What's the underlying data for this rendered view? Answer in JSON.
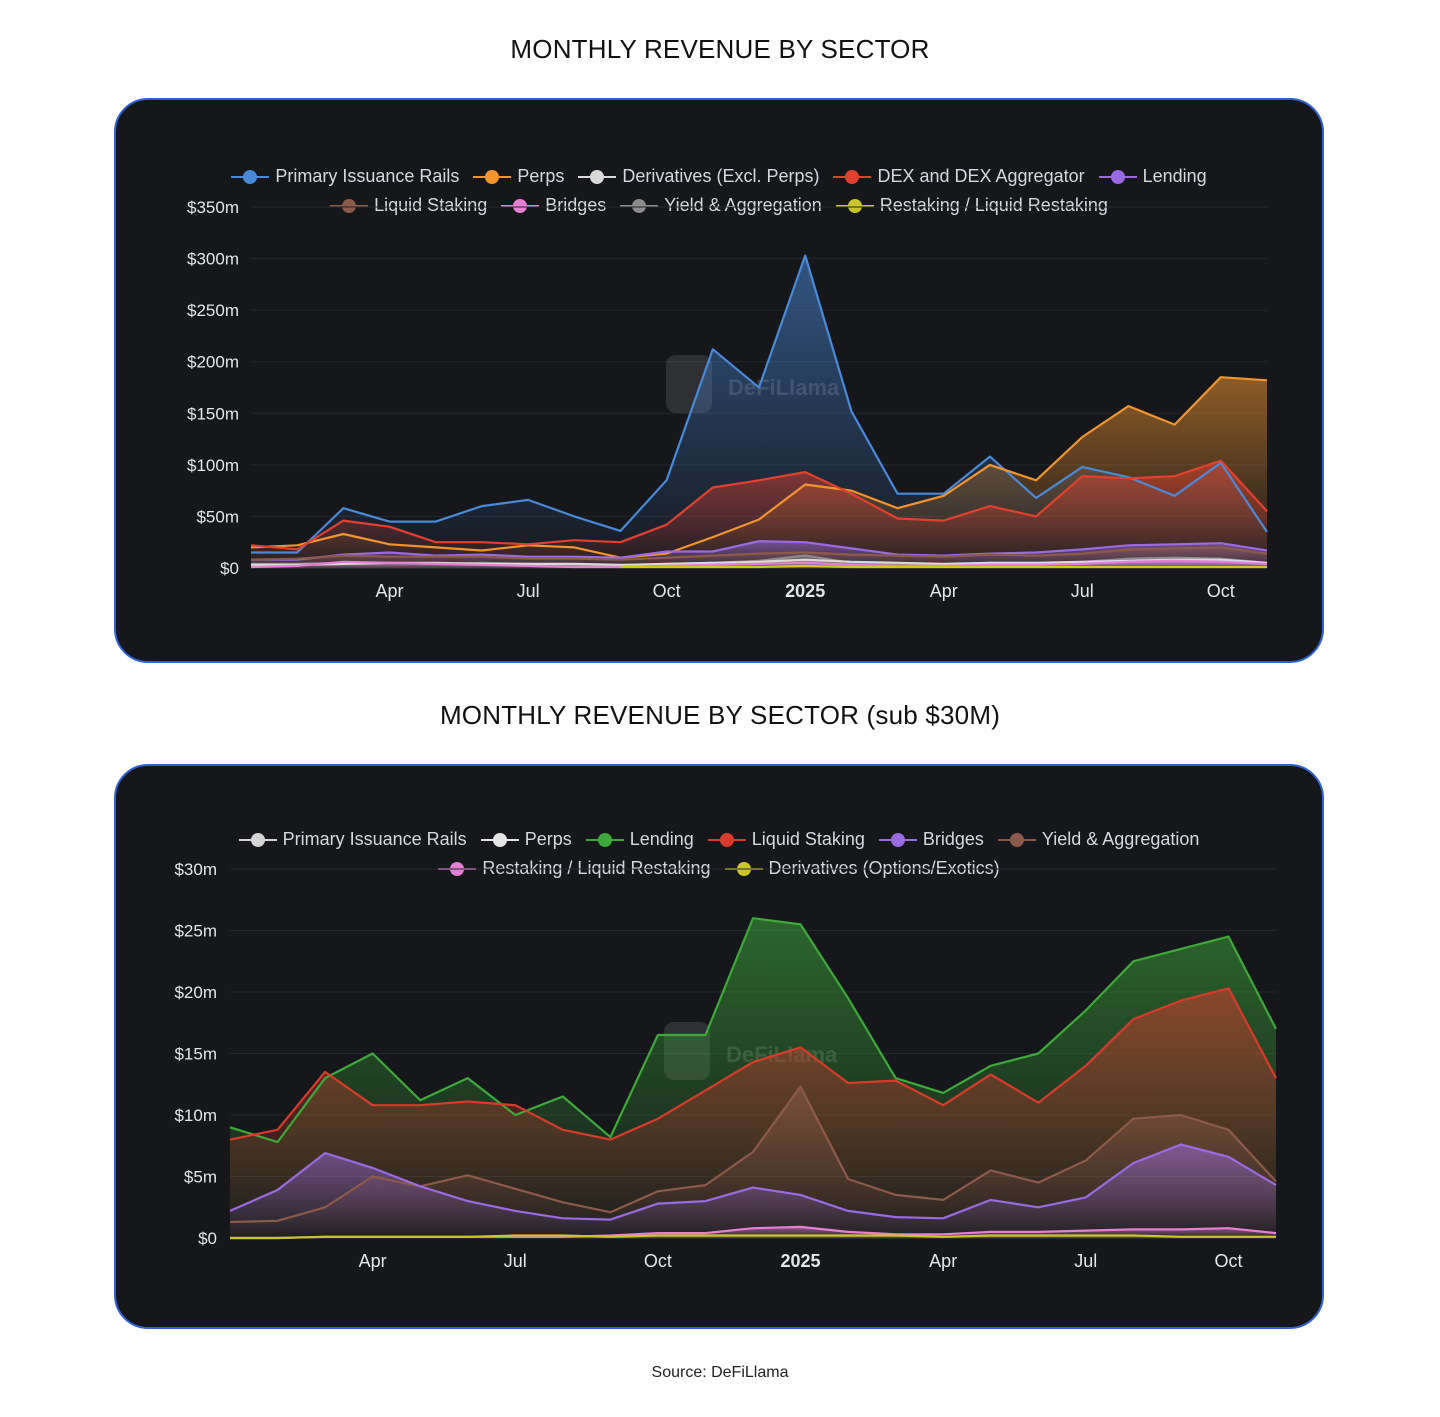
{
  "source_text": "Source: DeFiLlama",
  "chart_data": [
    {
      "type": "area",
      "title": "MONTHLY REVENUE BY SECTOR",
      "watermark": "DeFiLlama",
      "xlabel": "",
      "ylabel": "",
      "x_tick_labels": [
        "Apr",
        "Jul",
        "Oct",
        "2025",
        "Apr",
        "Jul",
        "Oct"
      ],
      "x_tick_month_index": [
        3,
        6,
        9,
        12,
        15,
        18,
        21
      ],
      "x_start_month_index": 0,
      "x_end_month_index": 22,
      "y_tick_labels": [
        "$0",
        "$50m",
        "$100m",
        "$150m",
        "$200m",
        "$250m",
        "$300m",
        "$350m"
      ],
      "y_tick_values": [
        0,
        50,
        100,
        150,
        200,
        250,
        300,
        350
      ],
      "ylim": [
        0,
        350
      ],
      "y_unit": "$m",
      "legend_position": "top-center",
      "series": [
        {
          "name": "Primary Issuance Rails",
          "color": "#4a88d8",
          "x": [
            0,
            1,
            2,
            3,
            4,
            5,
            6,
            7,
            8,
            9,
            10,
            11,
            12,
            13,
            14,
            15,
            16,
            17,
            18,
            19,
            20,
            21,
            22
          ],
          "values": [
            15,
            15,
            58,
            45,
            45,
            60,
            66,
            50,
            36,
            85,
            212,
            175,
            303,
            152,
            72,
            72,
            108,
            68,
            98,
            88,
            70,
            102,
            35
          ]
        },
        {
          "name": "Perps",
          "color": "#f2942e",
          "x": [
            0,
            1,
            2,
            3,
            4,
            5,
            6,
            7,
            8,
            9,
            10,
            11,
            12,
            13,
            14,
            15,
            16,
            17,
            18,
            19,
            20,
            21,
            22
          ],
          "values": [
            20,
            22,
            33,
            23,
            20,
            17,
            22,
            20,
            10,
            14,
            30,
            47,
            81,
            75,
            58,
            70,
            100,
            85,
            127,
            157,
            139,
            185,
            182
          ]
        },
        {
          "name": "Derivatives (Excl. Perps)",
          "color": "#d9d9d9",
          "x": [
            0,
            1,
            2,
            3,
            4,
            5,
            6,
            7,
            8,
            9,
            10,
            11,
            12,
            13,
            14,
            15,
            16,
            17,
            18,
            19,
            20,
            21,
            22
          ],
          "values": [
            3,
            3,
            4,
            5,
            5,
            4,
            4,
            4,
            3,
            4,
            5,
            6,
            8,
            6,
            5,
            4,
            5,
            5,
            6,
            7,
            8,
            8,
            5
          ]
        },
        {
          "name": "DEX and DEX Aggregator",
          "color": "#e2402f",
          "x": [
            0,
            1,
            2,
            3,
            4,
            5,
            6,
            7,
            8,
            9,
            10,
            11,
            12,
            13,
            14,
            15,
            16,
            17,
            18,
            19,
            20,
            21,
            22
          ],
          "values": [
            22,
            18,
            46,
            40,
            25,
            25,
            23,
            27,
            25,
            42,
            78,
            85,
            93,
            72,
            48,
            46,
            60,
            50,
            89,
            87,
            89,
            104,
            55
          ]
        },
        {
          "name": "Lending",
          "color": "#9a6be0",
          "x": [
            0,
            1,
            2,
            3,
            4,
            5,
            6,
            7,
            8,
            9,
            10,
            11,
            12,
            13,
            14,
            15,
            16,
            17,
            18,
            19,
            20,
            21,
            22
          ],
          "values": [
            8,
            8,
            13,
            15,
            12,
            13,
            11,
            11,
            10,
            16,
            16,
            26,
            25,
            19,
            13,
            12,
            14,
            15,
            18,
            22,
            23,
            24,
            17
          ]
        },
        {
          "name": "Liquid Staking",
          "color": "#8a5a4a",
          "x": [
            0,
            1,
            2,
            3,
            4,
            5,
            6,
            7,
            8,
            9,
            10,
            11,
            12,
            13,
            14,
            15,
            16,
            17,
            18,
            19,
            20,
            21,
            22
          ],
          "values": [
            8,
            9,
            12,
            11,
            11,
            11,
            9,
            9,
            8,
            10,
            12,
            14,
            15,
            13,
            12,
            11,
            13,
            12,
            14,
            18,
            19,
            20,
            14
          ]
        },
        {
          "name": "Bridges",
          "color": "#e57fd2",
          "x": [
            0,
            1,
            2,
            3,
            4,
            5,
            6,
            7,
            8,
            9,
            10,
            11,
            12,
            13,
            14,
            15,
            16,
            17,
            18,
            19,
            20,
            21,
            22
          ],
          "values": [
            1,
            2,
            6,
            5,
            4,
            3,
            2,
            1,
            1,
            2,
            3,
            4,
            5,
            3,
            2,
            2,
            3,
            3,
            4,
            6,
            7,
            6,
            4
          ]
        },
        {
          "name": "Yield & Aggregation",
          "color": "#8c8c8c",
          "x": [
            0,
            1,
            2,
            3,
            4,
            5,
            6,
            7,
            8,
            9,
            10,
            11,
            12,
            13,
            14,
            15,
            16,
            17,
            18,
            19,
            20,
            21,
            22
          ],
          "values": [
            4,
            4,
            5,
            5,
            4,
            5,
            4,
            3,
            2,
            4,
            5,
            7,
            12,
            5,
            4,
            3,
            5,
            5,
            6,
            9,
            10,
            9,
            5
          ]
        },
        {
          "name": "Restaking / Liquid Restaking",
          "color": "#c9c52a",
          "x": [
            8,
            9,
            10,
            11,
            12,
            13,
            14,
            15,
            16,
            17,
            18,
            19,
            20,
            21,
            22
          ],
          "values": [
            1,
            1,
            1,
            1,
            2,
            1,
            1,
            1,
            1,
            1,
            1,
            1,
            1,
            1,
            1
          ]
        }
      ]
    },
    {
      "type": "area",
      "title": "MONTHLY REVENUE BY SECTOR (sub $30M)",
      "watermark": "DeFiLlama",
      "xlabel": "",
      "ylabel": "",
      "x_tick_labels": [
        "Apr",
        "Jul",
        "Oct",
        "2025",
        "Apr",
        "Jul",
        "Oct"
      ],
      "x_tick_month_index": [
        3,
        6,
        9,
        12,
        15,
        18,
        21
      ],
      "x_start_month_index": 0,
      "x_end_month_index": 22,
      "y_tick_labels": [
        "$0",
        "$5m",
        "$10m",
        "$15m",
        "$20m",
        "$25m",
        "$30m"
      ],
      "y_tick_values": [
        0,
        5,
        10,
        15,
        20,
        25,
        30
      ],
      "ylim": [
        0,
        30
      ],
      "y_unit": "$m",
      "legend_position": "top-center",
      "series": [
        {
          "name": "Primary Issuance Rails",
          "color": "#d4d4d4",
          "x": [],
          "values": []
        },
        {
          "name": "Perps",
          "color": "#e6e6e6",
          "x": [],
          "values": []
        },
        {
          "name": "Lending",
          "color": "#3ea83a",
          "x": [
            0,
            1,
            2,
            3,
            4,
            5,
            6,
            7,
            8,
            9,
            10,
            11,
            12,
            13,
            14,
            15,
            16,
            17,
            18,
            19,
            20,
            21,
            22
          ],
          "values": [
            9,
            7.8,
            13,
            15,
            11.2,
            13,
            10,
            11.5,
            8.2,
            16.5,
            16.5,
            26,
            25.5,
            19.5,
            13,
            11.8,
            14,
            15,
            18.5,
            22.5,
            23.5,
            24.5,
            17
          ]
        },
        {
          "name": "Liquid Staking",
          "color": "#d83a2c",
          "x": [
            0,
            1,
            2,
            3,
            4,
            5,
            6,
            7,
            8,
            9,
            10,
            11,
            12,
            13,
            14,
            15,
            16,
            17,
            18,
            19,
            20,
            21,
            22
          ],
          "values": [
            8,
            8.8,
            13.5,
            10.8,
            10.8,
            11.1,
            10.8,
            8.8,
            8,
            9.7,
            12,
            14.3,
            15.5,
            12.6,
            12.8,
            10.8,
            13.3,
            11,
            14,
            17.8,
            19.3,
            20.3,
            13
          ]
        },
        {
          "name": "Bridges",
          "color": "#9a6be0",
          "x": [
            0,
            1,
            2,
            3,
            4,
            5,
            6,
            7,
            8,
            9,
            10,
            11,
            12,
            13,
            14,
            15,
            16,
            17,
            18,
            19,
            20,
            21,
            22
          ],
          "values": [
            2.2,
            3.9,
            6.9,
            5.7,
            4.2,
            3,
            2.2,
            1.6,
            1.5,
            2.8,
            3,
            4.1,
            3.5,
            2.2,
            1.7,
            1.6,
            3.1,
            2.5,
            3.3,
            6.1,
            7.6,
            6.6,
            4.3
          ]
        },
        {
          "name": "Yield & Aggregation",
          "color": "#8a5a4a",
          "x": [
            0,
            1,
            2,
            3,
            4,
            5,
            6,
            7,
            8,
            9,
            10,
            11,
            12,
            13,
            14,
            15,
            16,
            17,
            18,
            19,
            20,
            21,
            22
          ],
          "values": [
            1.3,
            1.4,
            2.5,
            5,
            4.2,
            5.1,
            4,
            2.9,
            2.1,
            3.8,
            4.3,
            7,
            12.3,
            4.8,
            3.5,
            3.1,
            5.5,
            4.5,
            6.3,
            9.7,
            10,
            8.8,
            4.6
          ]
        },
        {
          "name": "Restaking / Liquid Restaking",
          "color": "#e57fd2",
          "x": [
            0,
            1,
            2,
            3,
            4,
            5,
            6,
            7,
            8,
            9,
            10,
            11,
            12,
            13,
            14,
            15,
            16,
            17,
            18,
            19,
            20,
            21,
            22
          ],
          "values": [
            0,
            0,
            0.1,
            0.1,
            0.1,
            0.1,
            0.1,
            0.1,
            0.2,
            0.4,
            0.4,
            0.8,
            0.9,
            0.5,
            0.3,
            0.3,
            0.5,
            0.5,
            0.6,
            0.7,
            0.7,
            0.8,
            0.4
          ]
        },
        {
          "name": "Derivatives (Options/Exotics)",
          "color": "#c9c52a",
          "x": [
            0,
            1,
            2,
            3,
            4,
            5,
            6,
            7,
            8,
            9,
            10,
            11,
            12,
            13,
            14,
            15,
            16,
            17,
            18,
            19,
            20,
            21,
            22
          ],
          "values": [
            0,
            0,
            0.1,
            0.1,
            0.1,
            0.1,
            0.2,
            0.2,
            0.1,
            0.2,
            0.2,
            0.2,
            0.2,
            0.2,
            0.2,
            0.1,
            0.2,
            0.2,
            0.2,
            0.2,
            0.1,
            0.1,
            0.1
          ]
        }
      ]
    }
  ]
}
